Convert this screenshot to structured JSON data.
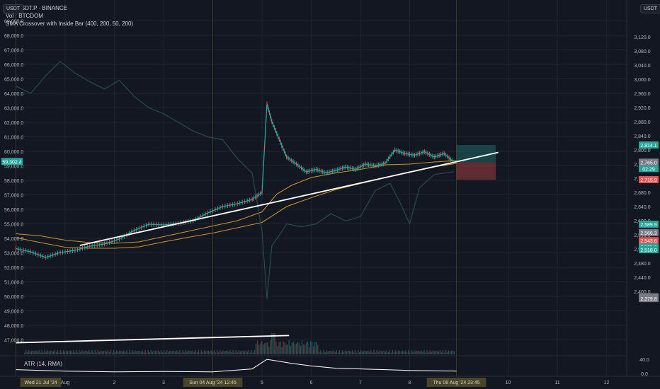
{
  "header": {
    "symbol_line": "BTCUSDT.P · BINANCE",
    "vol_line": "Vol · BTCDOM",
    "strategy_line": "SMA Crossover with Inside Bar (400, 200, 50, 200)"
  },
  "buttons": {
    "left_currency": "USDT",
    "right_currency": "USDT"
  },
  "atr_label": "ATR (14, RMA)",
  "colors": {
    "bg": "#131722",
    "up": "#26a69a",
    "down": "#ef5350",
    "sma": "#c8952b",
    "trend": "#ffffff",
    "grid": "#1f2330"
  },
  "chart_data": {
    "type": "line",
    "title": "",
    "left_axis": {
      "label": "USDT",
      "ticks": [
        47000,
        48000,
        49000,
        50000,
        51000,
        52000,
        53000,
        54000,
        55000,
        56000,
        57000,
        58000,
        59000,
        60000,
        61000,
        62000,
        63000,
        64000,
        65000,
        66000,
        67000,
        68000,
        69000
      ],
      "tick_labels": [
        "47,000.0",
        "48,000.0",
        "49,000.0",
        "50,000.0",
        "51,000.0",
        "52,000.0",
        "53,000.0",
        "54,000.0",
        "55,000.0",
        "56,000.0",
        "57,000.0",
        "58,000.0",
        "59,000.0",
        "60,000.0",
        "61,000.0",
        "62,000.0",
        "63,000.0",
        "64,000.0",
        "65,000.0",
        "66,000.0",
        "67,000.0",
        "68,000.0",
        "69,000.0"
      ],
      "current_badge": "59,302.4"
    },
    "right_axis": {
      "label": "USDT",
      "ticks": [
        2400,
        2440,
        2480,
        2520,
        2560,
        2600,
        2640,
        2680,
        2720,
        2760,
        2800,
        2840,
        2880,
        2920,
        2960,
        3000,
        3040,
        3080,
        3120
      ],
      "tick_labels": [
        "2,400.0",
        "2,440.0",
        "2,480.0",
        "2,520.0",
        "2,560.0",
        "2,600.0",
        "2,640.0",
        "2,680.0",
        "2,720.0",
        "2,760.0",
        "2,800.0",
        "2,840.0",
        "2,880.0",
        "2,920.0",
        "2,960.0",
        "3,000.0",
        "3,040.0",
        "3,080.0",
        "3,120.0"
      ],
      "price_tags": [
        {
          "text": "2,814.1",
          "value": 2814.1,
          "color": "#26a69a"
        },
        {
          "text": "2,765.5",
          "value": 2765.5,
          "color": "#26a69a",
          "sub": "02:29"
        },
        {
          "text": "2,765.0",
          "value": 2765.0,
          "color": "#787b86"
        },
        {
          "text": "2,715.9",
          "value": 2715.9,
          "color": "#ef5350"
        },
        {
          "text": "2,589.9",
          "value": 2589.9,
          "color": "#26a69a"
        },
        {
          "text": "2,566.3",
          "value": 2566.3,
          "color": "#787b86"
        },
        {
          "text": "2,543.6",
          "value": 2543.6,
          "color": "#ef5350"
        },
        {
          "text": "2,525.9",
          "value": 2525.9,
          "color": "#26a69a"
        },
        {
          "text": "2,518.0",
          "value": 2518.0,
          "color": "#26a69a"
        },
        {
          "text": "2,384.8",
          "value": 2384.8,
          "color": "#787b86"
        },
        {
          "text": "2,379.8",
          "value": 2379.8,
          "color": "#787b86"
        }
      ]
    },
    "atr_axis": {
      "tick_labels": [
        "40.0",
        "0.0"
      ]
    },
    "x_axis": {
      "ticks": [
        {
          "label": "Wed 21 Jul '24",
          "pos": 0,
          "highlight": true
        },
        {
          "label": "Aug",
          "pos": 1
        },
        {
          "label": "2",
          "pos": 2
        },
        {
          "label": "3",
          "pos": 3
        },
        {
          "label": "Sun 04 Aug '24  12:45",
          "pos": 4,
          "highlight": true
        },
        {
          "label": "5",
          "pos": 5
        },
        {
          "label": "6",
          "pos": 6
        },
        {
          "label": "7",
          "pos": 7
        },
        {
          "label": "8",
          "pos": 8
        },
        {
          "label": "Thu 08 Aug '24  23:45",
          "pos": 8.95,
          "highlight": true
        },
        {
          "label": "10",
          "pos": 10
        },
        {
          "label": "11",
          "pos": 11
        },
        {
          "label": "12",
          "pos": 12
        }
      ]
    },
    "series": [
      {
        "name": "",
        "kind": "price",
        "color": "#26a69a",
        "points": [
          [
            0,
            2521
          ],
          [
            0.3,
            2512
          ],
          [
            0.6,
            2496
          ],
          [
            0.9,
            2510
          ],
          [
            1.2,
            2516
          ],
          [
            1.5,
            2528
          ],
          [
            1.8,
            2534
          ],
          [
            2.1,
            2548
          ],
          [
            2.4,
            2572
          ],
          [
            2.7,
            2590
          ],
          [
            3.0,
            2588
          ],
          [
            3.3,
            2592
          ],
          [
            3.6,
            2600
          ],
          [
            3.9,
            2622
          ],
          [
            4.2,
            2640
          ],
          [
            4.5,
            2648
          ],
          [
            4.8,
            2660
          ],
          [
            5.0,
            2680
          ],
          [
            5.1,
            2930
          ],
          [
            5.2,
            2880
          ],
          [
            5.35,
            2830
          ],
          [
            5.5,
            2780
          ],
          [
            5.7,
            2760
          ],
          [
            5.9,
            2738
          ],
          [
            6.1,
            2745
          ],
          [
            6.3,
            2735
          ],
          [
            6.5,
            2742
          ],
          [
            6.7,
            2752
          ],
          [
            6.9,
            2745
          ],
          [
            7.1,
            2760
          ],
          [
            7.3,
            2755
          ],
          [
            7.5,
            2762
          ],
          [
            7.7,
            2800
          ],
          [
            7.9,
            2790
          ],
          [
            8.1,
            2785
          ],
          [
            8.3,
            2795
          ],
          [
            8.5,
            2780
          ],
          [
            8.7,
            2790
          ],
          [
            8.9,
            2765
          ]
        ]
      },
      {
        "name": "",
        "kind": "sma_fast",
        "color": "#c8952b",
        "points": [
          [
            0,
            2563
          ],
          [
            0.5,
            2557
          ],
          [
            1.0,
            2545
          ],
          [
            1.5,
            2538
          ],
          [
            2.0,
            2536
          ],
          [
            2.5,
            2540
          ],
          [
            3.0,
            2555
          ],
          [
            3.5,
            2570
          ],
          [
            4.0,
            2585
          ],
          [
            4.5,
            2600
          ],
          [
            5.0,
            2625
          ],
          [
            5.3,
            2675
          ],
          [
            5.6,
            2700
          ],
          [
            6.0,
            2722
          ],
          [
            6.5,
            2735
          ],
          [
            7.0,
            2745
          ],
          [
            7.5,
            2758
          ],
          [
            8.0,
            2760
          ],
          [
            8.5,
            2766
          ],
          [
            8.95,
            2770
          ]
        ]
      },
      {
        "name": "",
        "kind": "sma_slow",
        "color": "#c8952b",
        "points": [
          [
            0,
            2552
          ],
          [
            0.5,
            2538
          ],
          [
            1.0,
            2525
          ],
          [
            1.5,
            2522
          ],
          [
            2.0,
            2522
          ],
          [
            2.5,
            2526
          ],
          [
            3.0,
            2540
          ],
          [
            3.5,
            2553
          ],
          [
            4.0,
            2565
          ],
          [
            4.5,
            2580
          ],
          [
            5.0,
            2595
          ],
          [
            5.5,
            2640
          ],
          [
            6.0,
            2665
          ],
          [
            6.5,
            2688
          ],
          [
            7.0,
            2705
          ],
          [
            7.5,
            2722
          ],
          [
            8.0,
            2738
          ],
          [
            8.5,
            2752
          ],
          [
            8.95,
            2762
          ]
        ]
      },
      {
        "name": "",
        "kind": "btcdom",
        "color": "#2a4a4a",
        "points": [
          [
            0,
            64500
          ],
          [
            0.3,
            64000
          ],
          [
            0.6,
            65200
          ],
          [
            0.9,
            66200
          ],
          [
            1.2,
            65400
          ],
          [
            1.5,
            64800
          ],
          [
            1.8,
            64300
          ],
          [
            2.1,
            64900
          ],
          [
            2.4,
            63800
          ],
          [
            2.7,
            63000
          ],
          [
            3.0,
            62600
          ],
          [
            3.3,
            62000
          ],
          [
            3.6,
            61400
          ],
          [
            3.9,
            61000
          ],
          [
            4.2,
            60800
          ],
          [
            4.5,
            59500
          ],
          [
            4.8,
            58500
          ],
          [
            5.0,
            54500
          ],
          [
            5.1,
            49800
          ],
          [
            5.2,
            53500
          ],
          [
            5.35,
            54200
          ],
          [
            5.5,
            55000
          ],
          [
            5.8,
            54800
          ],
          [
            6.1,
            55000
          ],
          [
            6.4,
            55700
          ],
          [
            6.7,
            55200
          ],
          [
            7.0,
            55500
          ],
          [
            7.3,
            57300
          ],
          [
            7.6,
            57800
          ],
          [
            7.8,
            56500
          ],
          [
            8.0,
            55000
          ],
          [
            8.2,
            57500
          ],
          [
            8.5,
            58400
          ],
          [
            8.9,
            58600
          ]
        ]
      }
    ],
    "trend_lines": [
      {
        "from": [
          1.3,
          2530
        ],
        "to": [
          9.8,
          2793
        ],
        "scale": "right"
      },
      {
        "from": [
          0,
          46800
        ],
        "to": [
          5.55,
          47300
        ],
        "scale": "left"
      }
    ],
    "position_box": {
      "start": 8.95,
      "end": 9.75,
      "entry": 2765.5,
      "target": 2814.1,
      "stop": 2715.9
    },
    "atr": {
      "points": [
        [
          0,
          18
        ],
        [
          1,
          14
        ],
        [
          2,
          12
        ],
        [
          3,
          13
        ],
        [
          4,
          12
        ],
        [
          4.8,
          20
        ],
        [
          5.1,
          46
        ],
        [
          5.3,
          42
        ],
        [
          5.6,
          35
        ],
        [
          6,
          28
        ],
        [
          6.5,
          22
        ],
        [
          7,
          20
        ],
        [
          7.5,
          18
        ],
        [
          8,
          16
        ],
        [
          8.5,
          15
        ],
        [
          8.95,
          14
        ]
      ],
      "ylim": [
        0,
        50
      ]
    },
    "grid": true
  }
}
